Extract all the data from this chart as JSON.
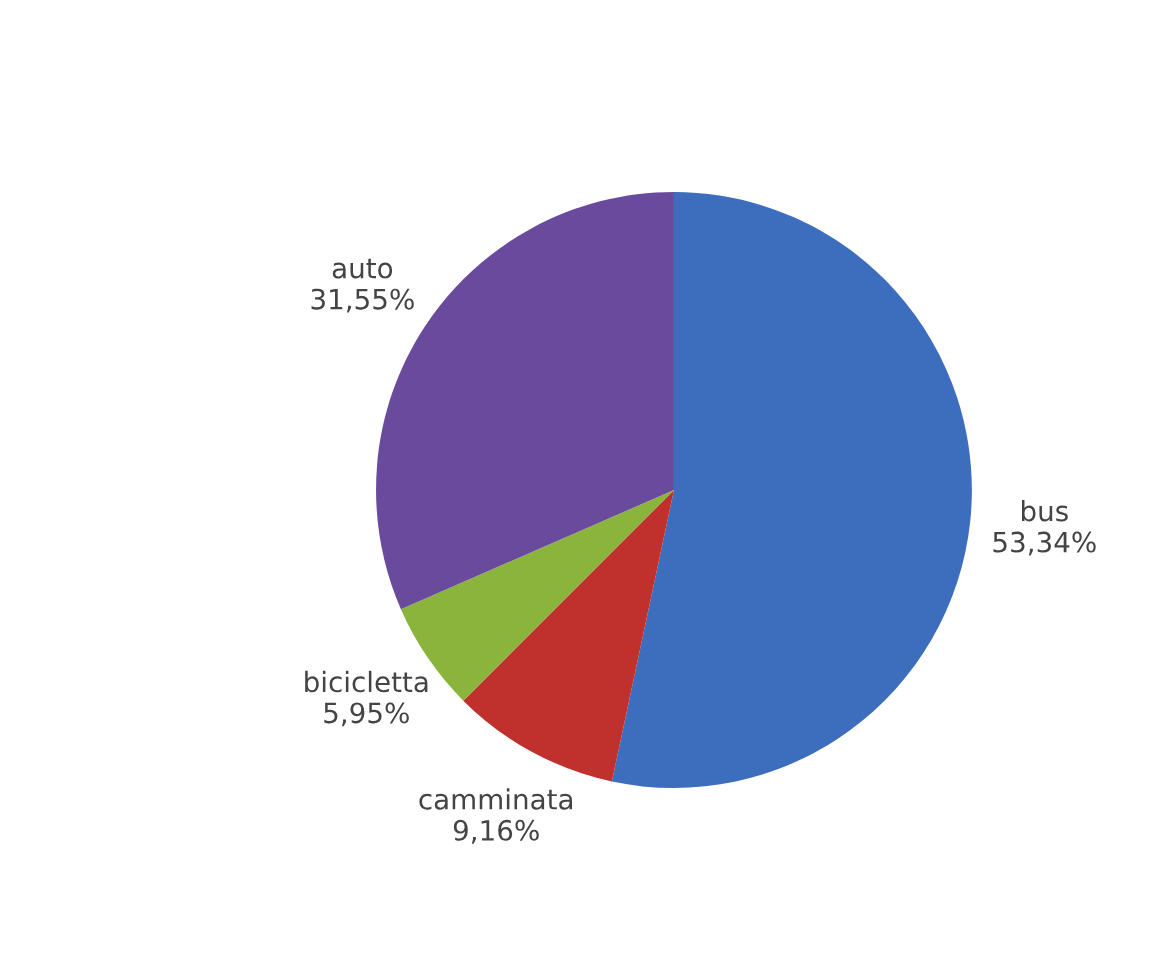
{
  "chart_data": {
    "type": "pie",
    "categories": [
      "bus",
      "camminata",
      "bicicletta",
      "auto"
    ],
    "values": [
      53.34,
      9.16,
      5.95,
      31.55
    ],
    "value_labels": [
      "53,34%",
      "9,16%",
      "5,95%",
      "31,55%"
    ],
    "colors": [
      "#3d6dbd",
      "#c0302c",
      "#8ab43c",
      "#6a4a9c"
    ]
  }
}
